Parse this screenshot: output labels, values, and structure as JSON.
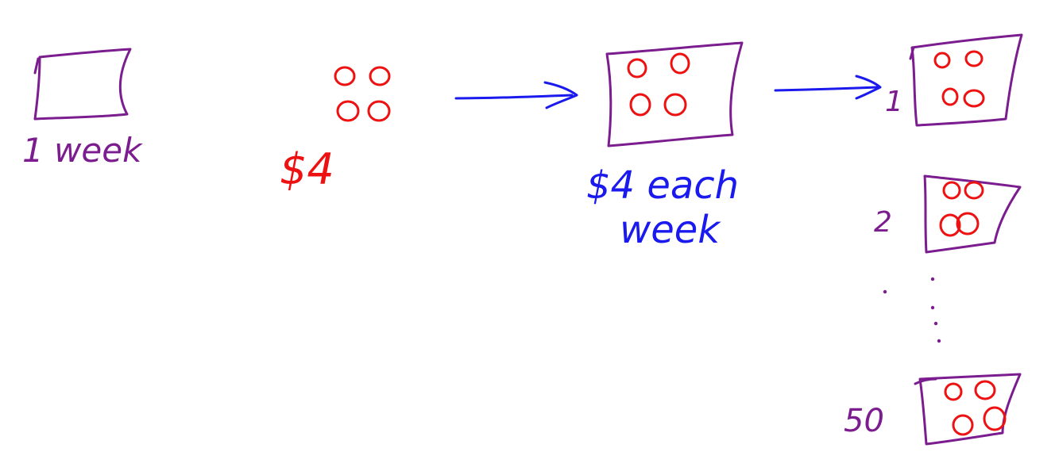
{
  "colors": {
    "box": "#7b1d8f",
    "coin": "#ee1111",
    "blue": "#1a1aee"
  },
  "week_box": {
    "label": "1 week"
  },
  "coins": {
    "price_label": "$4"
  },
  "weekly_box": {
    "label_line1": "$4 each",
    "label_line2": "week"
  },
  "weeks": {
    "first_number": "1",
    "second_number": "2",
    "last_number": "50"
  }
}
